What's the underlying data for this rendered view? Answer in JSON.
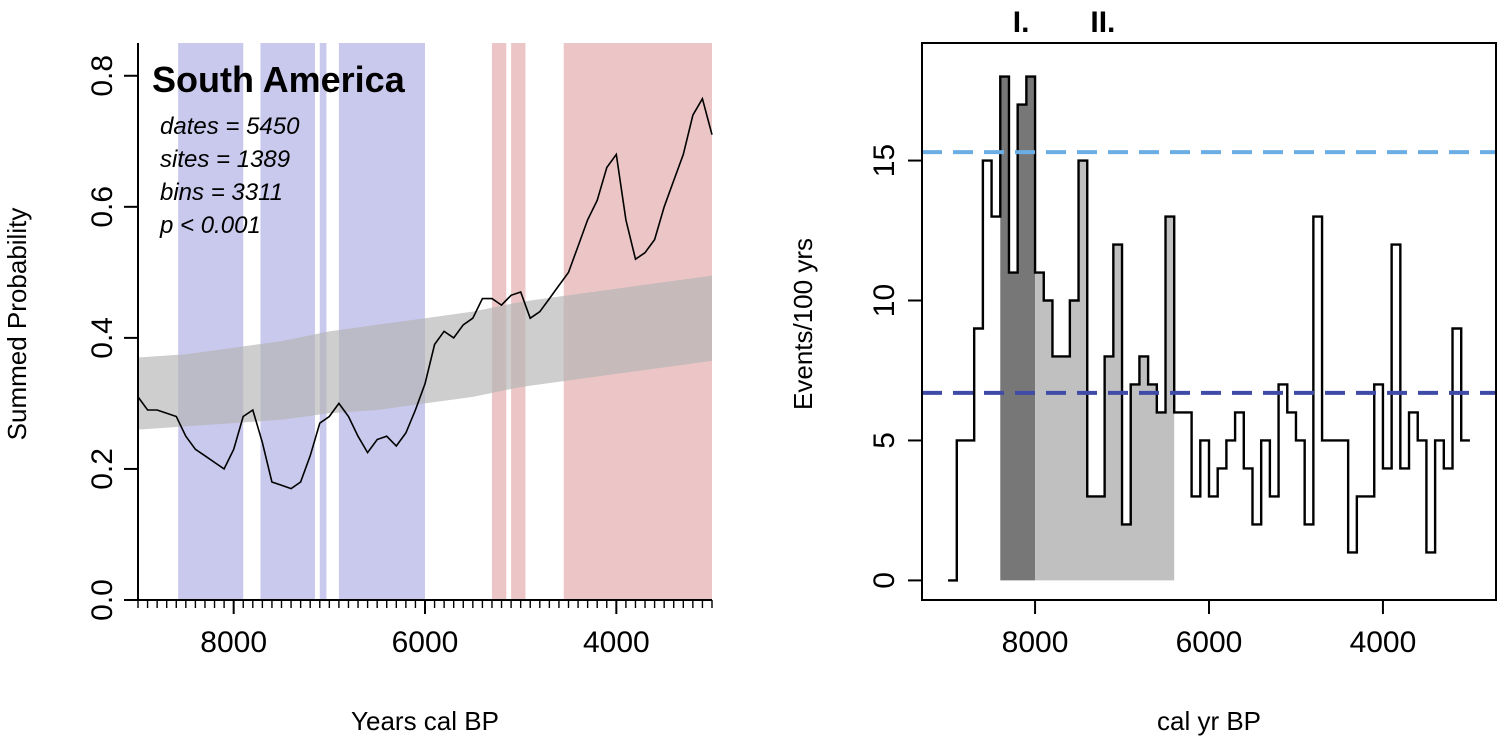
{
  "chart_data": [
    {
      "type": "line",
      "title": "South America",
      "stats": [
        "dates = 5450",
        "sites = 1389",
        "bins = 3311",
        "p < 0.001"
      ],
      "xlabel": "Years cal BP",
      "ylabel": "Summed Probability",
      "xlim": [
        9000,
        3000
      ],
      "ylim": [
        0,
        0.85
      ],
      "x_ticks": [
        8000,
        6000,
        4000
      ],
      "x_tick_labels": [
        "8000",
        "6000",
        "4000"
      ],
      "y_ticks": [
        0.0,
        0.2,
        0.4,
        0.6,
        0.8
      ],
      "y_tick_labels": [
        "0.0",
        "0.2",
        "0.4",
        "0.6",
        "0.8"
      ],
      "negative_deviation_bands": [
        [
          8580,
          7900
        ],
        [
          7720,
          7150
        ],
        [
          7100,
          7030
        ],
        [
          6900,
          6000
        ]
      ],
      "positive_deviation_bands": [
        [
          5300,
          5150
        ],
        [
          5100,
          4950
        ],
        [
          4550,
          3000
        ]
      ],
      "band_colors": {
        "negative": "#c9c9ed",
        "positive": "#ecc6c6",
        "envelope": "#b4b4b4"
      },
      "envelope": {
        "x": [
          9000,
          8500,
          8000,
          7500,
          7000,
          6500,
          6000,
          5500,
          5000,
          4500,
          4000,
          3500,
          3000
        ],
        "lower": [
          0.26,
          0.265,
          0.27,
          0.275,
          0.285,
          0.29,
          0.3,
          0.31,
          0.325,
          0.335,
          0.345,
          0.355,
          0.365
        ],
        "upper": [
          0.37,
          0.375,
          0.385,
          0.395,
          0.41,
          0.42,
          0.43,
          0.44,
          0.455,
          0.465,
          0.475,
          0.485,
          0.495
        ]
      },
      "series": [
        {
          "color": "#000000",
          "x": [
            9000,
            8900,
            8800,
            8700,
            8600,
            8500,
            8400,
            8300,
            8200,
            8100,
            8000,
            7900,
            7800,
            7700,
            7600,
            7500,
            7400,
            7300,
            7200,
            7100,
            7000,
            6900,
            6800,
            6700,
            6600,
            6500,
            6400,
            6300,
            6200,
            6100,
            6000,
            5900,
            5800,
            5700,
            5600,
            5500,
            5400,
            5300,
            5200,
            5100,
            5000,
            4900,
            4800,
            4700,
            4600,
            4500,
            4400,
            4300,
            4200,
            4100,
            4000,
            3900,
            3800,
            3700,
            3600,
            3500,
            3400,
            3300,
            3200,
            3100,
            3000
          ],
          "values": [
            0.31,
            0.29,
            0.29,
            0.285,
            0.28,
            0.25,
            0.23,
            0.22,
            0.21,
            0.2,
            0.23,
            0.28,
            0.29,
            0.24,
            0.18,
            0.175,
            0.17,
            0.18,
            0.22,
            0.27,
            0.28,
            0.3,
            0.28,
            0.25,
            0.225,
            0.245,
            0.25,
            0.235,
            0.255,
            0.29,
            0.33,
            0.39,
            0.41,
            0.4,
            0.42,
            0.43,
            0.46,
            0.46,
            0.45,
            0.465,
            0.47,
            0.43,
            0.44,
            0.46,
            0.48,
            0.5,
            0.54,
            0.58,
            0.61,
            0.66,
            0.68,
            0.58,
            0.52,
            0.53,
            0.55,
            0.6,
            0.64,
            0.68,
            0.74,
            0.765,
            0.71
          ]
        }
      ]
    },
    {
      "type": "area",
      "xlabel": "cal yr BP",
      "ylabel": "Events/100 yrs",
      "xlim": [
        9300,
        2700
      ],
      "ylim": [
        -0.7,
        19.2
      ],
      "x_ticks": [
        8000,
        6000,
        4000
      ],
      "x_tick_labels": [
        "8000",
        "6000",
        "4000"
      ],
      "y_ticks": [
        0,
        5,
        10,
        15
      ],
      "y_tick_labels": [
        "0",
        "5",
        "10",
        "15"
      ],
      "phase_labels": [
        {
          "text": "I.",
          "x": 8160
        },
        {
          "text": "II.",
          "x": 7220
        }
      ],
      "shaded_regions": [
        {
          "x0": 8400,
          "x1": 8000,
          "color": "#777777"
        },
        {
          "x0": 8000,
          "x1": 6400,
          "color": "#c0c0c0"
        }
      ],
      "reference_lines": [
        {
          "y": 15.3,
          "color": "#6baee5",
          "style": "dashed"
        },
        {
          "y": 6.7,
          "color": "#3f4ba6",
          "style": "dashed"
        }
      ],
      "bin_width": 100,
      "bin_starts": [
        9000,
        8900,
        8800,
        8700,
        8600,
        8500,
        8400,
        8300,
        8200,
        8100,
        8000,
        7900,
        7800,
        7700,
        7600,
        7500,
        7400,
        7300,
        7200,
        7100,
        7000,
        6900,
        6800,
        6700,
        6600,
        6500,
        6400,
        6300,
        6200,
        6100,
        6000,
        5900,
        5800,
        5700,
        5600,
        5500,
        5400,
        5300,
        5200,
        5100,
        5000,
        4900,
        4800,
        4700,
        4600,
        4500,
        4400,
        4300,
        4200,
        4100,
        4000,
        3900,
        3800,
        3700,
        3600,
        3500,
        3400,
        3300,
        3200,
        3100
      ],
      "values": [
        0,
        5,
        5,
        9,
        15,
        13,
        18,
        11,
        17,
        18,
        11,
        10,
        8,
        8,
        10,
        15,
        3,
        3,
        8,
        12,
        2,
        7,
        8,
        7,
        6,
        13,
        6,
        6,
        3,
        5,
        3,
        4,
        5,
        6,
        4,
        2,
        5,
        3,
        7,
        6,
        5,
        2,
        13,
        5,
        5,
        5,
        1,
        3,
        3,
        7,
        4,
        12,
        4,
        6,
        5,
        1,
        5,
        4,
        9,
        5
      ]
    }
  ]
}
